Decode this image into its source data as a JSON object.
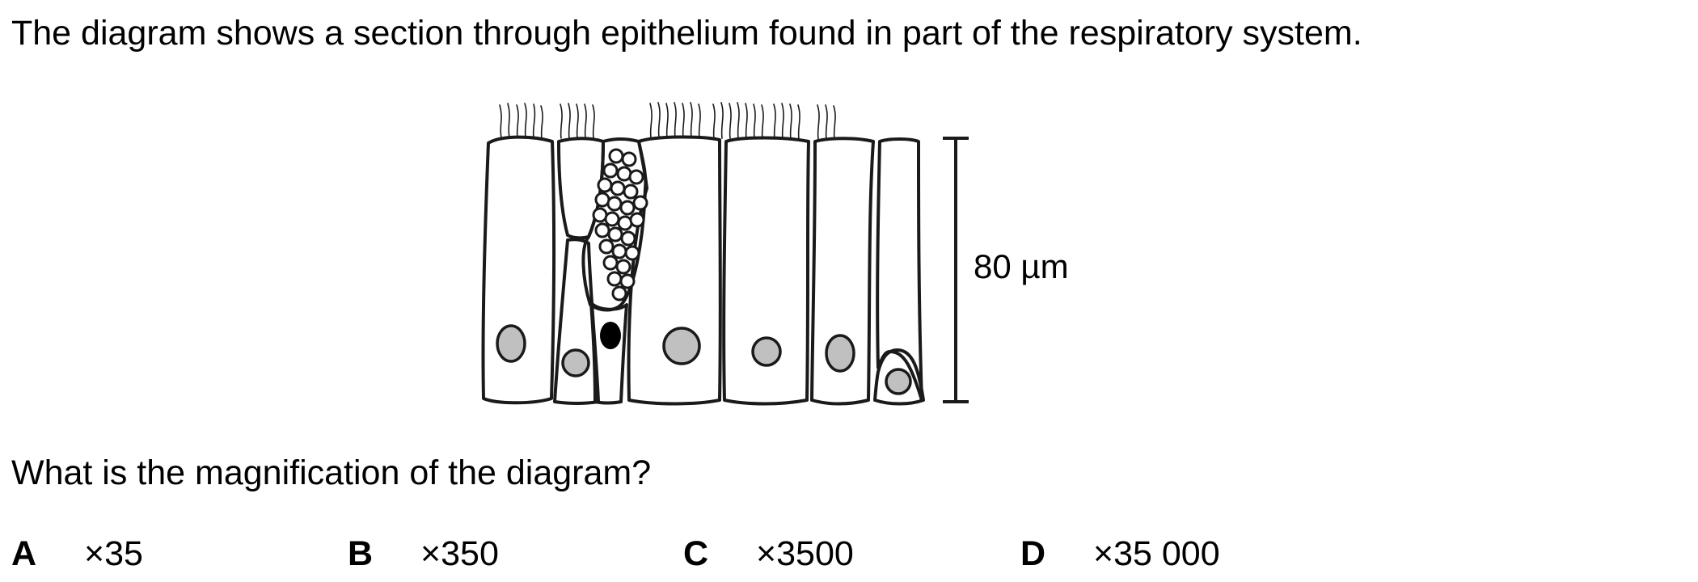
{
  "question": {
    "intro": "The diagram shows a section through epithelium found in part of the respiratory system.",
    "prompt": "What is the magnification of the diagram?"
  },
  "diagram": {
    "scale_label": "80 µm"
  },
  "options": [
    {
      "letter": "A",
      "value": "×35"
    },
    {
      "letter": "B",
      "value": "×350"
    },
    {
      "letter": "C",
      "value": "×3500"
    },
    {
      "letter": "D",
      "value": "×35 000"
    }
  ]
}
